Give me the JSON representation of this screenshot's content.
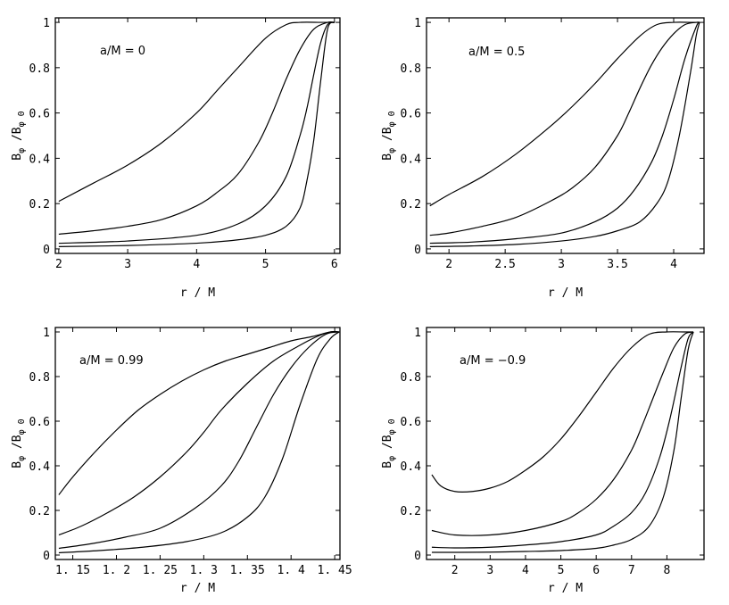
{
  "chart_data": [
    {
      "type": "line",
      "annotation": "a/M = 0",
      "xlabel": "r / M",
      "ylabel_main": "B",
      "ylabel_sub": "φ",
      "ylabel_div": " /B",
      "ylabel_sub2": "φ 0",
      "xlim": [
        1.95,
        6.08
      ],
      "ylim": [
        -0.02,
        1.02
      ],
      "xticks": [
        2,
        3,
        4,
        5,
        6
      ],
      "xtick_labels": [
        "2",
        "3",
        "4",
        "5",
        "6"
      ],
      "yticks": [
        0,
        0.2,
        0.4,
        0.6,
        0.8,
        1
      ],
      "ytick_labels": [
        "0",
        "0.2",
        "0.4",
        "0.6",
        "0.8",
        "1"
      ],
      "series": [
        {
          "x": [
            2.0,
            2.5,
            3.0,
            3.5,
            4.0,
            4.3,
            4.6,
            5.0,
            5.3,
            5.5,
            5.8,
            6.0
          ],
          "y": [
            0.21,
            0.29,
            0.37,
            0.47,
            0.6,
            0.7,
            0.8,
            0.93,
            0.99,
            1.0,
            1.0,
            1.0
          ]
        },
        {
          "x": [
            2.0,
            2.5,
            3.0,
            3.5,
            4.0,
            4.3,
            4.6,
            4.9,
            5.1,
            5.3,
            5.5,
            5.7,
            5.9,
            6.0
          ],
          "y": [
            0.065,
            0.08,
            0.1,
            0.13,
            0.19,
            0.25,
            0.33,
            0.47,
            0.6,
            0.75,
            0.88,
            0.97,
            1.0,
            1.0
          ]
        },
        {
          "x": [
            2.0,
            3.0,
            4.0,
            4.6,
            5.0,
            5.3,
            5.5,
            5.6,
            5.7,
            5.8,
            5.9,
            6.0
          ],
          "y": [
            0.025,
            0.035,
            0.06,
            0.11,
            0.19,
            0.32,
            0.5,
            0.62,
            0.77,
            0.91,
            0.99,
            1.0
          ]
        },
        {
          "x": [
            2.0,
            3.0,
            4.0,
            4.6,
            5.0,
            5.3,
            5.5,
            5.6,
            5.7,
            5.8,
            5.9,
            6.0
          ],
          "y": [
            0.01,
            0.015,
            0.025,
            0.04,
            0.06,
            0.1,
            0.18,
            0.3,
            0.48,
            0.74,
            0.97,
            1.0
          ]
        }
      ]
    },
    {
      "type": "line",
      "annotation": "a/M = 0.5",
      "xlabel": "r / M",
      "ylabel_main": "B",
      "ylabel_sub": "φ",
      "ylabel_div": " /B",
      "ylabel_sub2": "φ 0",
      "xlim": [
        1.8,
        4.27
      ],
      "ylim": [
        -0.02,
        1.02
      ],
      "xticks": [
        2,
        2.5,
        3,
        3.5,
        4
      ],
      "xtick_labels": [
        "2",
        "2.5",
        "3",
        "3.5",
        "4"
      ],
      "yticks": [
        0,
        0.2,
        0.4,
        0.6,
        0.8,
        1
      ],
      "ytick_labels": [
        "0",
        "0.2",
        "0.4",
        "0.6",
        "0.8",
        "1"
      ],
      "series": [
        {
          "x": [
            1.83,
            2.0,
            2.3,
            2.6,
            2.9,
            3.1,
            3.3,
            3.5,
            3.7,
            3.85,
            4.0,
            4.15,
            4.23
          ],
          "y": [
            0.19,
            0.24,
            0.32,
            0.42,
            0.54,
            0.63,
            0.73,
            0.84,
            0.94,
            0.99,
            1.0,
            1.0,
            1.0
          ]
        },
        {
          "x": [
            1.83,
            2.0,
            2.3,
            2.6,
            2.9,
            3.1,
            3.3,
            3.5,
            3.6,
            3.7,
            3.8,
            3.9,
            4.0,
            4.1,
            4.2,
            4.23
          ],
          "y": [
            0.06,
            0.07,
            0.1,
            0.14,
            0.21,
            0.27,
            0.36,
            0.5,
            0.6,
            0.71,
            0.81,
            0.89,
            0.95,
            0.99,
            1.0,
            1.0
          ]
        },
        {
          "x": [
            1.83,
            2.2,
            2.6,
            3.0,
            3.3,
            3.5,
            3.65,
            3.8,
            3.9,
            4.0,
            4.1,
            4.2,
            4.23
          ],
          "y": [
            0.025,
            0.03,
            0.045,
            0.07,
            0.12,
            0.18,
            0.26,
            0.38,
            0.5,
            0.66,
            0.84,
            0.98,
            1.0
          ]
        },
        {
          "x": [
            1.83,
            2.2,
            2.6,
            3.0,
            3.3,
            3.5,
            3.7,
            3.85,
            3.95,
            4.05,
            4.15,
            4.2,
            4.23
          ],
          "y": [
            0.01,
            0.013,
            0.02,
            0.035,
            0.055,
            0.08,
            0.12,
            0.2,
            0.3,
            0.5,
            0.78,
            0.94,
            1.0
          ]
        }
      ]
    },
    {
      "type": "line",
      "annotation": "a/M = 0.99",
      "xlabel": "r / M",
      "ylabel_main": "B",
      "ylabel_sub": "φ",
      "ylabel_div": " /B",
      "ylabel_sub2": "φ 0",
      "xlim": [
        1.13,
        1.456
      ],
      "ylim": [
        -0.02,
        1.02
      ],
      "xticks": [
        1.15,
        1.2,
        1.25,
        1.3,
        1.35,
        1.4,
        1.45
      ],
      "xtick_labels": [
        "1. 15",
        "1. 2",
        "1. 25",
        "1. 3",
        "1. 35",
        "1. 4",
        "1. 45"
      ],
      "yticks": [
        0,
        0.2,
        0.4,
        0.6,
        0.8,
        1
      ],
      "ytick_labels": [
        "0",
        "0.2",
        "0.4",
        "0.6",
        "0.8",
        "1"
      ],
      "series": [
        {
          "x": [
            1.134,
            1.15,
            1.175,
            1.2,
            1.225,
            1.25,
            1.275,
            1.3,
            1.325,
            1.35,
            1.375,
            1.4,
            1.425,
            1.445,
            1.455
          ],
          "y": [
            0.27,
            0.35,
            0.46,
            0.56,
            0.65,
            0.72,
            0.78,
            0.83,
            0.87,
            0.9,
            0.93,
            0.96,
            0.98,
            1.0,
            1.0
          ]
        },
        {
          "x": [
            1.134,
            1.16,
            1.19,
            1.22,
            1.25,
            1.28,
            1.3,
            1.32,
            1.35,
            1.38,
            1.41,
            1.43,
            1.445,
            1.455
          ],
          "y": [
            0.09,
            0.13,
            0.19,
            0.26,
            0.35,
            0.46,
            0.55,
            0.65,
            0.77,
            0.87,
            0.94,
            0.98,
            1.0,
            1.0
          ]
        },
        {
          "x": [
            1.134,
            1.17,
            1.21,
            1.25,
            1.29,
            1.32,
            1.34,
            1.36,
            1.38,
            1.4,
            1.42,
            1.44,
            1.455
          ],
          "y": [
            0.03,
            0.05,
            0.08,
            0.12,
            0.21,
            0.31,
            0.42,
            0.57,
            0.72,
            0.84,
            0.93,
            0.99,
            1.0
          ]
        },
        {
          "x": [
            1.134,
            1.18,
            1.23,
            1.28,
            1.32,
            1.35,
            1.37,
            1.39,
            1.41,
            1.43,
            1.445,
            1.455
          ],
          "y": [
            0.01,
            0.02,
            0.035,
            0.06,
            0.1,
            0.17,
            0.26,
            0.43,
            0.67,
            0.88,
            0.97,
            1.0
          ]
        }
      ]
    },
    {
      "type": "line",
      "annotation": "a/M = −0.9",
      "xlabel": "r / M",
      "ylabel_main": "B",
      "ylabel_sub": "φ",
      "ylabel_div": " /B",
      "ylabel_sub2": "φ 0",
      "xlim": [
        1.2,
        9.05
      ],
      "ylim": [
        -0.02,
        1.02
      ],
      "xticks": [
        2,
        3,
        4,
        5,
        6,
        7,
        8
      ],
      "xtick_labels": [
        "2",
        "3",
        "4",
        "5",
        "6",
        "7",
        "8"
      ],
      "yticks": [
        0,
        0.2,
        0.4,
        0.6,
        0.8,
        1
      ],
      "ytick_labels": [
        "0",
        "0.2",
        "0.4",
        "0.6",
        "0.8",
        "1"
      ],
      "series": [
        {
          "x": [
            1.35,
            1.6,
            2.0,
            2.5,
            3.0,
            3.5,
            4.0,
            4.5,
            5.0,
            5.5,
            6.0,
            6.5,
            7.0,
            7.5,
            8.0,
            8.5,
            8.75
          ],
          "y": [
            0.36,
            0.31,
            0.285,
            0.285,
            0.3,
            0.33,
            0.38,
            0.44,
            0.52,
            0.62,
            0.73,
            0.84,
            0.93,
            0.99,
            1.0,
            1.0,
            1.0
          ]
        },
        {
          "x": [
            1.35,
            2.0,
            3.0,
            4.0,
            5.0,
            5.5,
            6.0,
            6.5,
            7.0,
            7.3,
            7.6,
            7.9,
            8.2,
            8.5,
            8.75
          ],
          "y": [
            0.11,
            0.09,
            0.09,
            0.11,
            0.15,
            0.19,
            0.25,
            0.34,
            0.47,
            0.58,
            0.7,
            0.82,
            0.93,
            0.99,
            1.0
          ]
        },
        {
          "x": [
            1.35,
            2.0,
            3.0,
            4.0,
            5.0,
            6.0,
            6.5,
            7.0,
            7.4,
            7.8,
            8.1,
            8.4,
            8.6,
            8.75
          ],
          "y": [
            0.035,
            0.032,
            0.035,
            0.045,
            0.06,
            0.09,
            0.13,
            0.19,
            0.28,
            0.44,
            0.62,
            0.84,
            0.97,
            1.0
          ]
        },
        {
          "x": [
            1.35,
            2.0,
            3.0,
            4.0,
            5.0,
            6.0,
            6.5,
            7.0,
            7.5,
            7.9,
            8.2,
            8.4,
            8.6,
            8.75
          ],
          "y": [
            0.012,
            0.012,
            0.013,
            0.016,
            0.02,
            0.03,
            0.045,
            0.07,
            0.13,
            0.26,
            0.47,
            0.7,
            0.92,
            1.0
          ]
        }
      ]
    }
  ]
}
